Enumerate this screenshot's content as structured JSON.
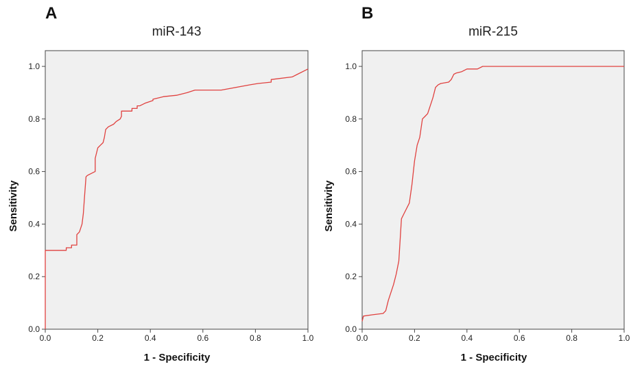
{
  "panels": [
    {
      "label": "A"
    },
    {
      "label": "B"
    }
  ],
  "colors": {
    "curve": "#e0403e",
    "plot_bg": "#f0f0f0",
    "frame": "#444444"
  },
  "chart_data": [
    {
      "type": "line",
      "title": "miR-143",
      "xlabel": "1 - Specificity",
      "ylabel": "Sensitivity",
      "xlim": [
        0,
        1
      ],
      "ylim": [
        0,
        1
      ],
      "xticks": [
        "0.0",
        "0.2",
        "0.4",
        "0.6",
        "0.8",
        "1.0"
      ],
      "yticks": [
        "0.0",
        "0.2",
        "0.4",
        "0.6",
        "0.8",
        "1.0"
      ],
      "grid": false,
      "series": [
        {
          "x": [
            0.0,
            0.0,
            0.08,
            0.08,
            0.1,
            0.1,
            0.12,
            0.12,
            0.13,
            0.14,
            0.145,
            0.15,
            0.155,
            0.16,
            0.17,
            0.19,
            0.19,
            0.2,
            0.21,
            0.22,
            0.225,
            0.23,
            0.24,
            0.26,
            0.27,
            0.285,
            0.29,
            0.29,
            0.33,
            0.33,
            0.35,
            0.35,
            0.36,
            0.38,
            0.41,
            0.41,
            0.45,
            0.5,
            0.54,
            0.57,
            0.67,
            0.78,
            0.81,
            0.86,
            0.86,
            0.94,
            0.96,
            1.0
          ],
          "y": [
            0.0,
            0.3,
            0.3,
            0.31,
            0.31,
            0.32,
            0.32,
            0.36,
            0.37,
            0.4,
            0.44,
            0.51,
            0.58,
            0.585,
            0.59,
            0.6,
            0.65,
            0.69,
            0.7,
            0.71,
            0.73,
            0.76,
            0.77,
            0.78,
            0.79,
            0.8,
            0.81,
            0.83,
            0.83,
            0.84,
            0.84,
            0.85,
            0.85,
            0.86,
            0.87,
            0.875,
            0.885,
            0.89,
            0.9,
            0.91,
            0.91,
            0.93,
            0.935,
            0.94,
            0.95,
            0.96,
            0.97,
            0.99
          ]
        }
      ]
    },
    {
      "type": "line",
      "title": "miR-215",
      "xlabel": "1 - Specificity",
      "ylabel": "Sensitivity",
      "xlim": [
        0,
        1
      ],
      "ylim": [
        0,
        1
      ],
      "xticks": [
        "0.0",
        "0.2",
        "0.4",
        "0.6",
        "0.8",
        "1.0"
      ],
      "yticks": [
        "0.0",
        "0.2",
        "0.4",
        "0.6",
        "0.8",
        "1.0"
      ],
      "grid": false,
      "series": [
        {
          "x": [
            0.0,
            0.005,
            0.04,
            0.08,
            0.09,
            0.1,
            0.12,
            0.13,
            0.14,
            0.15,
            0.16,
            0.18,
            0.19,
            0.2,
            0.21,
            0.22,
            0.23,
            0.24,
            0.25,
            0.26,
            0.27,
            0.28,
            0.29,
            0.3,
            0.33,
            0.34,
            0.35,
            0.36,
            0.38,
            0.4,
            0.42,
            0.44,
            0.46,
            0.47,
            0.55,
            1.0
          ],
          "y": [
            0.03,
            0.05,
            0.055,
            0.06,
            0.07,
            0.11,
            0.17,
            0.21,
            0.26,
            0.42,
            0.44,
            0.48,
            0.55,
            0.64,
            0.7,
            0.73,
            0.8,
            0.81,
            0.82,
            0.85,
            0.88,
            0.92,
            0.93,
            0.935,
            0.94,
            0.95,
            0.97,
            0.975,
            0.98,
            0.99,
            0.99,
            0.99,
            1.0,
            1.0,
            1.0,
            1.0
          ]
        }
      ]
    }
  ]
}
